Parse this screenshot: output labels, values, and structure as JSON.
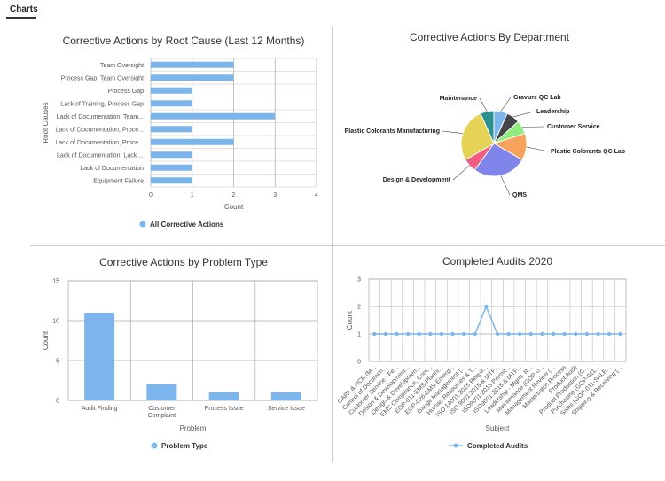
{
  "header": {
    "tab_label": "Charts"
  },
  "colors": {
    "series": "#7cb5ec",
    "grid": "#aaaaaa"
  },
  "chart_data": [
    {
      "id": "root_cause",
      "type": "bar",
      "orientation": "horizontal",
      "title": "Corrective Actions by Root Cause (Last 12 Months)",
      "xlabel": "Count",
      "ylabel": "Root Causes",
      "xlim": [
        0,
        4
      ],
      "xticks": [
        0,
        1,
        2,
        3,
        4
      ],
      "categories": [
        "Team Oversight",
        "Process Gap, Team Oversight",
        "Process Gap",
        "Lack of Training, Process Gap",
        "Lack of Documentation, Team...",
        "Lack of Documentation, Proce...",
        "Lack of Documentation, Proce...",
        "Lack of Documentation, Lack ...",
        "Lack of Documentation",
        "Equipment Failure"
      ],
      "values": [
        2,
        2,
        1,
        1,
        3,
        1,
        2,
        1,
        1,
        1
      ],
      "series": [
        {
          "name": "All Corrective Actions"
        }
      ],
      "legend": "bottom-center",
      "grid": true
    },
    {
      "id": "department",
      "type": "pie",
      "title": "Corrective Actions By Department",
      "slices": [
        {
          "label": "Gravure QC Lab",
          "value": 1,
          "color": "#7cb5ec"
        },
        {
          "label": "Leadership",
          "value": 1,
          "color": "#434348"
        },
        {
          "label": "Customer Service",
          "value": 1,
          "color": "#90ed7d"
        },
        {
          "label": "Plastic Colorants QC Lab",
          "value": 2,
          "color": "#f7a35c"
        },
        {
          "label": "QMS",
          "value": 4,
          "color": "#8085e9"
        },
        {
          "label": "Design & Development",
          "value": 1,
          "color": "#f15c80"
        },
        {
          "label": "Plastic Colorants Manufacturing",
          "value": 4,
          "color": "#e4d354"
        },
        {
          "label": "Maintenance",
          "value": 1,
          "color": "#2b908f"
        }
      ]
    },
    {
      "id": "problem_type",
      "type": "bar",
      "title": "Corrective Actions by Problem Type",
      "xlabel": "Problem",
      "ylabel": "Count",
      "ylim": [
        0,
        15
      ],
      "yticks": [
        0,
        5,
        10,
        15
      ],
      "categories": [
        "Audit Finding",
        "Customer Complaint",
        "Process Issue",
        "Service Issue"
      ],
      "values": [
        11,
        2,
        1,
        1
      ],
      "series": [
        {
          "name": "Problem Type"
        }
      ],
      "legend": "bottom-center",
      "grid": true
    },
    {
      "id": "audits",
      "type": "line",
      "title": "Completed Audits 2020",
      "xlabel": "Subject",
      "ylabel": "Count",
      "ylim": [
        0,
        3
      ],
      "yticks": [
        0,
        1,
        2,
        3
      ],
      "categories": [
        "CAPA & NCR (M...",
        "Control of Documen...",
        "Customer Service - Fe...",
        "Design & Development...",
        "Design & Developmen...",
        "EMS Compliance, Com...",
        "EOP-011-EMS-Planni...",
        "EOP-026-EMS-Emerg...",
        "Gauge Management (...",
        "Human Resources & T...",
        "ISO 14001:2015 Requir...",
        "ISO 9001:2015 & IATF...",
        "ISO9001:2015 Permit...",
        "ISO9001:2015 & IATF...",
        "Leadership - Mgmt. R...",
        "Maintenance (GOP-0...",
        "Management Review (...",
        "Masterbatch Process",
        "Product Audit",
        "Product Production (C...",
        "Purchasing (GOP-011...",
        "Sales (GOP-011-SALE...",
        "Shipping & Receiving (..."
      ],
      "values": [
        1,
        1,
        1,
        1,
        1,
        1,
        1,
        1,
        1,
        1,
        2,
        1,
        1,
        1,
        1,
        1,
        1,
        1,
        1,
        1,
        1,
        1,
        1
      ],
      "series": [
        {
          "name": "Completed Audits"
        }
      ],
      "legend": "bottom-center",
      "grid": true
    }
  ]
}
